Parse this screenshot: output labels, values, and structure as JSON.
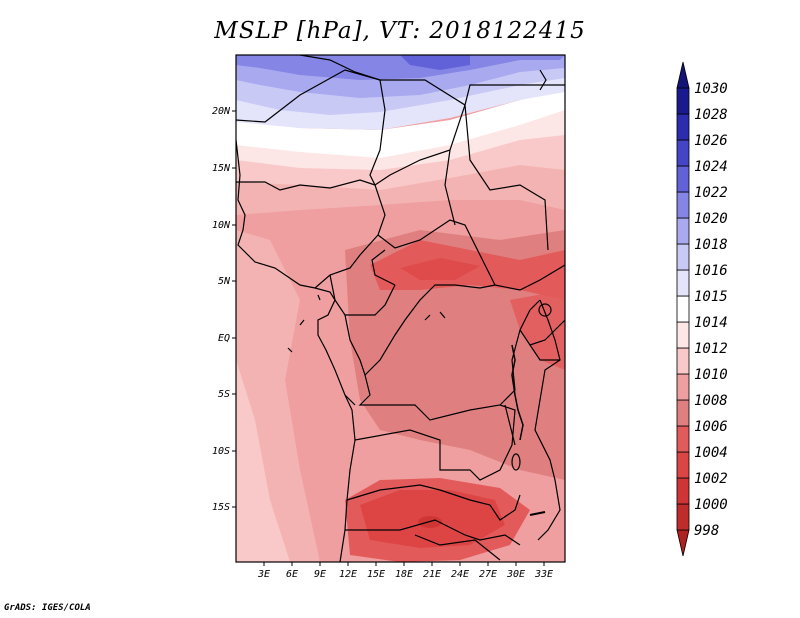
{
  "title": "MSLP [hPa], VT: 2018122415",
  "footer": "GrADS: IGES/COLA",
  "lat_ticks": [
    "20N",
    "15N",
    "10N",
    "5N",
    "EQ",
    "5S",
    "10S",
    "15S"
  ],
  "lon_ticks": [
    "3E",
    "6E",
    "9E",
    "12E",
    "15E",
    "18E",
    "21E",
    "24E",
    "27E",
    "30E",
    "33E"
  ],
  "colorbar": {
    "labels": [
      "998",
      "1000",
      "1002",
      "1004",
      "1006",
      "1008",
      "1010",
      "1012",
      "1014",
      "1015",
      "1016",
      "1018",
      "1020",
      "1022",
      "1024",
      "1026",
      "1028",
      "1030"
    ],
    "colors": [
      "#b02020",
      "#c02b2b",
      "#cf3535",
      "#dd4545",
      "#e35a5a",
      "#e07f7f",
      "#ef9f9f",
      "#f9c9c9",
      "#fde6e6",
      "#ffffff",
      "#e4e4fb",
      "#c9c9f6",
      "#a9a9f0",
      "#8585e6",
      "#6262d8",
      "#4444c6",
      "#2c2cae",
      "#1a1a90",
      "#141478"
    ]
  }
}
